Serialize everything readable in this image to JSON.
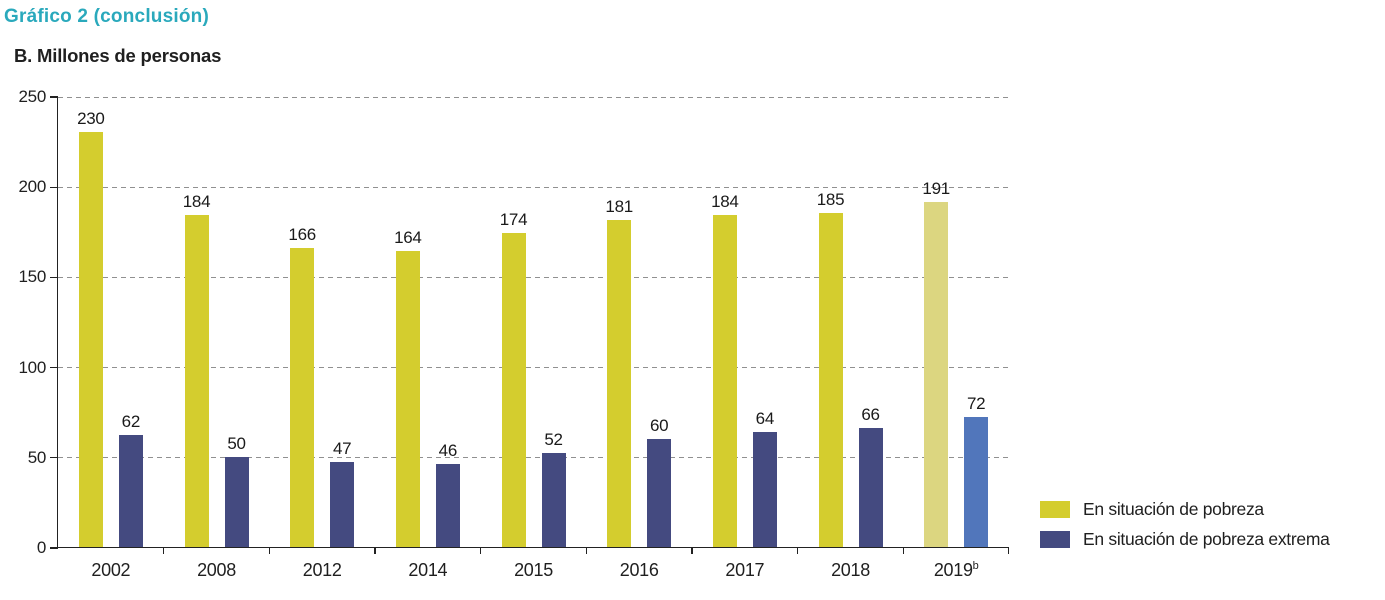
{
  "page": {
    "title": "Gráfico 2 (conclusión)",
    "subtitle": "B. Millones de personas"
  },
  "colors": {
    "title_teal": "#2aa9bc",
    "poverty_yellow": "#d4cd2e",
    "extreme_navy": "#444a80",
    "poverty_yellow_projection": "#dcd680",
    "extreme_blue_projection": "#5176bb",
    "gridline_gray": "#909090",
    "axis_black": "#222222",
    "text_black": "#1f1f1f"
  },
  "legend": {
    "items": [
      {
        "label": "En situación de pobreza",
        "color": "#d4cd2e"
      },
      {
        "label": "En situación de pobreza extrema",
        "color": "#444a80"
      }
    ]
  },
  "chart_data": {
    "type": "bar",
    "title": "B. Millones de personas",
    "categories": [
      "2002",
      "2008",
      "2012",
      "2014",
      "2015",
      "2016",
      "2017",
      "2018",
      "2019"
    ],
    "category_superscripts": {
      "2019": "b"
    },
    "series": [
      {
        "name": "En situación de pobreza",
        "values": [
          230,
          184,
          166,
          164,
          174,
          181,
          184,
          185,
          191
        ],
        "color": "#d4cd2e",
        "projection_color": "#dcd680"
      },
      {
        "name": "En situación de pobreza extrema",
        "values": [
          62,
          50,
          47,
          46,
          52,
          60,
          64,
          66,
          72
        ],
        "color": "#444a80",
        "projection_color": "#5176bb"
      }
    ],
    "projection_category_index": 8,
    "ylim": [
      0,
      250
    ],
    "yticks": [
      0,
      50,
      100,
      150,
      200,
      250
    ],
    "grid": "horizontal-dashed",
    "legend_position": "bottom-right",
    "value_labels": true
  }
}
